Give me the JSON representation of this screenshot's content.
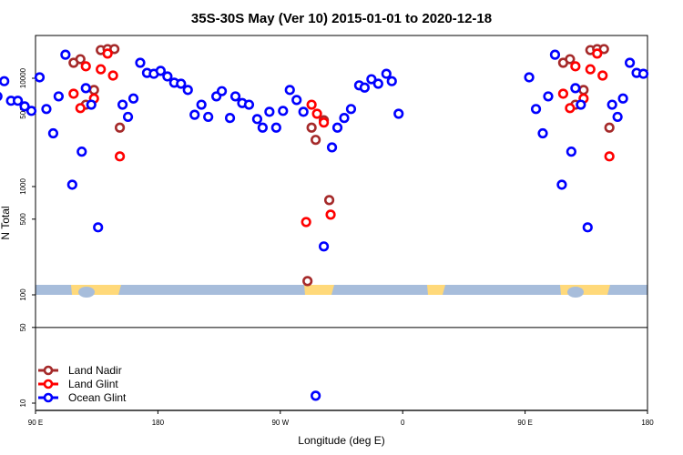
{
  "chart_data": {
    "type": "scatter",
    "title": "35S-30S May (Ver 10)   2015-01-01 to 2020-12-18",
    "xlabel": "Longitude (deg E)",
    "ylabel": "N Total",
    "y_scale": "log",
    "ylim": [
      8.6,
      24800
    ],
    "xlim_unwrapped_deg": [
      90,
      540
    ],
    "x_ticks": [
      {
        "value": 90,
        "label": "90 E"
      },
      {
        "value": 180,
        "label": "180"
      },
      {
        "value": 270,
        "label": "90 W"
      },
      {
        "value": 360,
        "label": "0"
      },
      {
        "value": 450,
        "label": "90 E"
      },
      {
        "value": 540,
        "label": "180"
      }
    ],
    "y_ticks": [
      {
        "value": 10,
        "label": "10"
      },
      {
        "value": 50,
        "label": "50"
      },
      {
        "value": 100,
        "label": "100"
      },
      {
        "value": 500,
        "label": "500"
      },
      {
        "value": 1000,
        "label": "1000"
      },
      {
        "value": 5000,
        "label": "5000"
      },
      {
        "value": 10000,
        "label": "10000"
      }
    ],
    "reference_line_y": 50,
    "note_x": "longitude in degrees E (-180..180); points in 90..180 repeat at right end of axis",
    "legend_position": "bottom-left",
    "series": [
      {
        "name": "Land Nadir",
        "color": "#a52a2a",
        "points": [
          [
            118,
            13900
          ],
          [
            123,
            15000
          ],
          [
            127,
            5700
          ],
          [
            133,
            7800
          ],
          [
            138,
            18200
          ],
          [
            143,
            18600
          ],
          [
            148,
            18600
          ],
          [
            152,
            3500
          ],
          [
            -70,
            134
          ],
          [
            -67,
            3500
          ],
          [
            -64,
            2700
          ],
          [
            -58,
            4100
          ],
          [
            -54,
            750
          ],
          [
            19,
            8600
          ],
          [
            23,
            18600
          ],
          [
            27,
            9400
          ],
          [
            30,
            1120
          ]
        ]
      },
      {
        "name": "Land Glint",
        "color": "#ff0000",
        "points": [
          [
            118,
            7200
          ],
          [
            123,
            5300
          ],
          [
            127,
            12900
          ],
          [
            133,
            6500
          ],
          [
            138,
            12100
          ],
          [
            143,
            16900
          ],
          [
            147,
            10600
          ],
          [
            152,
            1900
          ],
          [
            -71,
            470
          ],
          [
            -67,
            5700
          ],
          [
            -63,
            4700
          ],
          [
            -58,
            3900
          ],
          [
            -53,
            550
          ],
          [
            19,
            1750
          ],
          [
            23,
            12900
          ],
          [
            27,
            8400
          ],
          [
            30,
            12.6
          ]
        ]
      },
      {
        "name": "Ocean Glint",
        "color": "#0000ff",
        "points": [
          [
            93,
            10200
          ],
          [
            98,
            5200
          ],
          [
            103,
            3100
          ],
          [
            107,
            6800
          ],
          [
            112,
            16500
          ],
          [
            117,
            1040
          ],
          [
            124,
            2100
          ],
          [
            127,
            8100
          ],
          [
            131,
            5700
          ],
          [
            136,
            420
          ],
          [
            154,
            5700
          ],
          [
            158,
            4400
          ],
          [
            162,
            6500
          ],
          [
            167,
            13900
          ],
          [
            172,
            11200
          ],
          [
            177,
            11000
          ],
          [
            -178,
            11700
          ],
          [
            -173,
            10400
          ],
          [
            -168,
            9100
          ],
          [
            -163,
            8900
          ],
          [
            -158,
            7800
          ],
          [
            -153,
            4600
          ],
          [
            -148,
            5700
          ],
          [
            -143,
            4400
          ],
          [
            -137,
            6800
          ],
          [
            -133,
            7600
          ],
          [
            -127,
            4300
          ],
          [
            -123,
            6800
          ],
          [
            -118,
            5900
          ],
          [
            -113,
            5700
          ],
          [
            -107,
            4200
          ],
          [
            -103,
            3500
          ],
          [
            -98,
            4900
          ],
          [
            -93,
            3500
          ],
          [
            -88,
            5000
          ],
          [
            -83,
            7800
          ],
          [
            -78,
            6300
          ],
          [
            -73,
            4900
          ],
          [
            -64,
            11.7
          ],
          [
            -58,
            280
          ],
          [
            -52,
            2300
          ],
          [
            -48,
            3500
          ],
          [
            -43,
            4300
          ],
          [
            -38,
            5200
          ],
          [
            -32,
            8600
          ],
          [
            -28,
            8200
          ],
          [
            -23,
            9800
          ],
          [
            -18,
            8900
          ],
          [
            -12,
            11000
          ],
          [
            -8,
            9400
          ],
          [
            -3,
            4700
          ],
          [
            2,
            7600
          ],
          [
            7,
            3700
          ],
          [
            12,
            10600
          ],
          [
            17,
            8600
          ],
          [
            23,
            1020
          ],
          [
            28,
            4400
          ],
          [
            32,
            11200
          ],
          [
            37,
            10200
          ],
          [
            43,
            6300
          ],
          [
            47,
            13100
          ],
          [
            53,
            8200
          ],
          [
            58,
            5500
          ],
          [
            62,
            6800
          ],
          [
            67,
            9400
          ],
          [
            72,
            6200
          ],
          [
            77,
            6200
          ],
          [
            82,
            5500
          ],
          [
            87,
            5000
          ]
        ]
      }
    ],
    "colors": {
      "ocean_strip": "#a7bddb",
      "land_strip": "#ffd97a"
    }
  }
}
